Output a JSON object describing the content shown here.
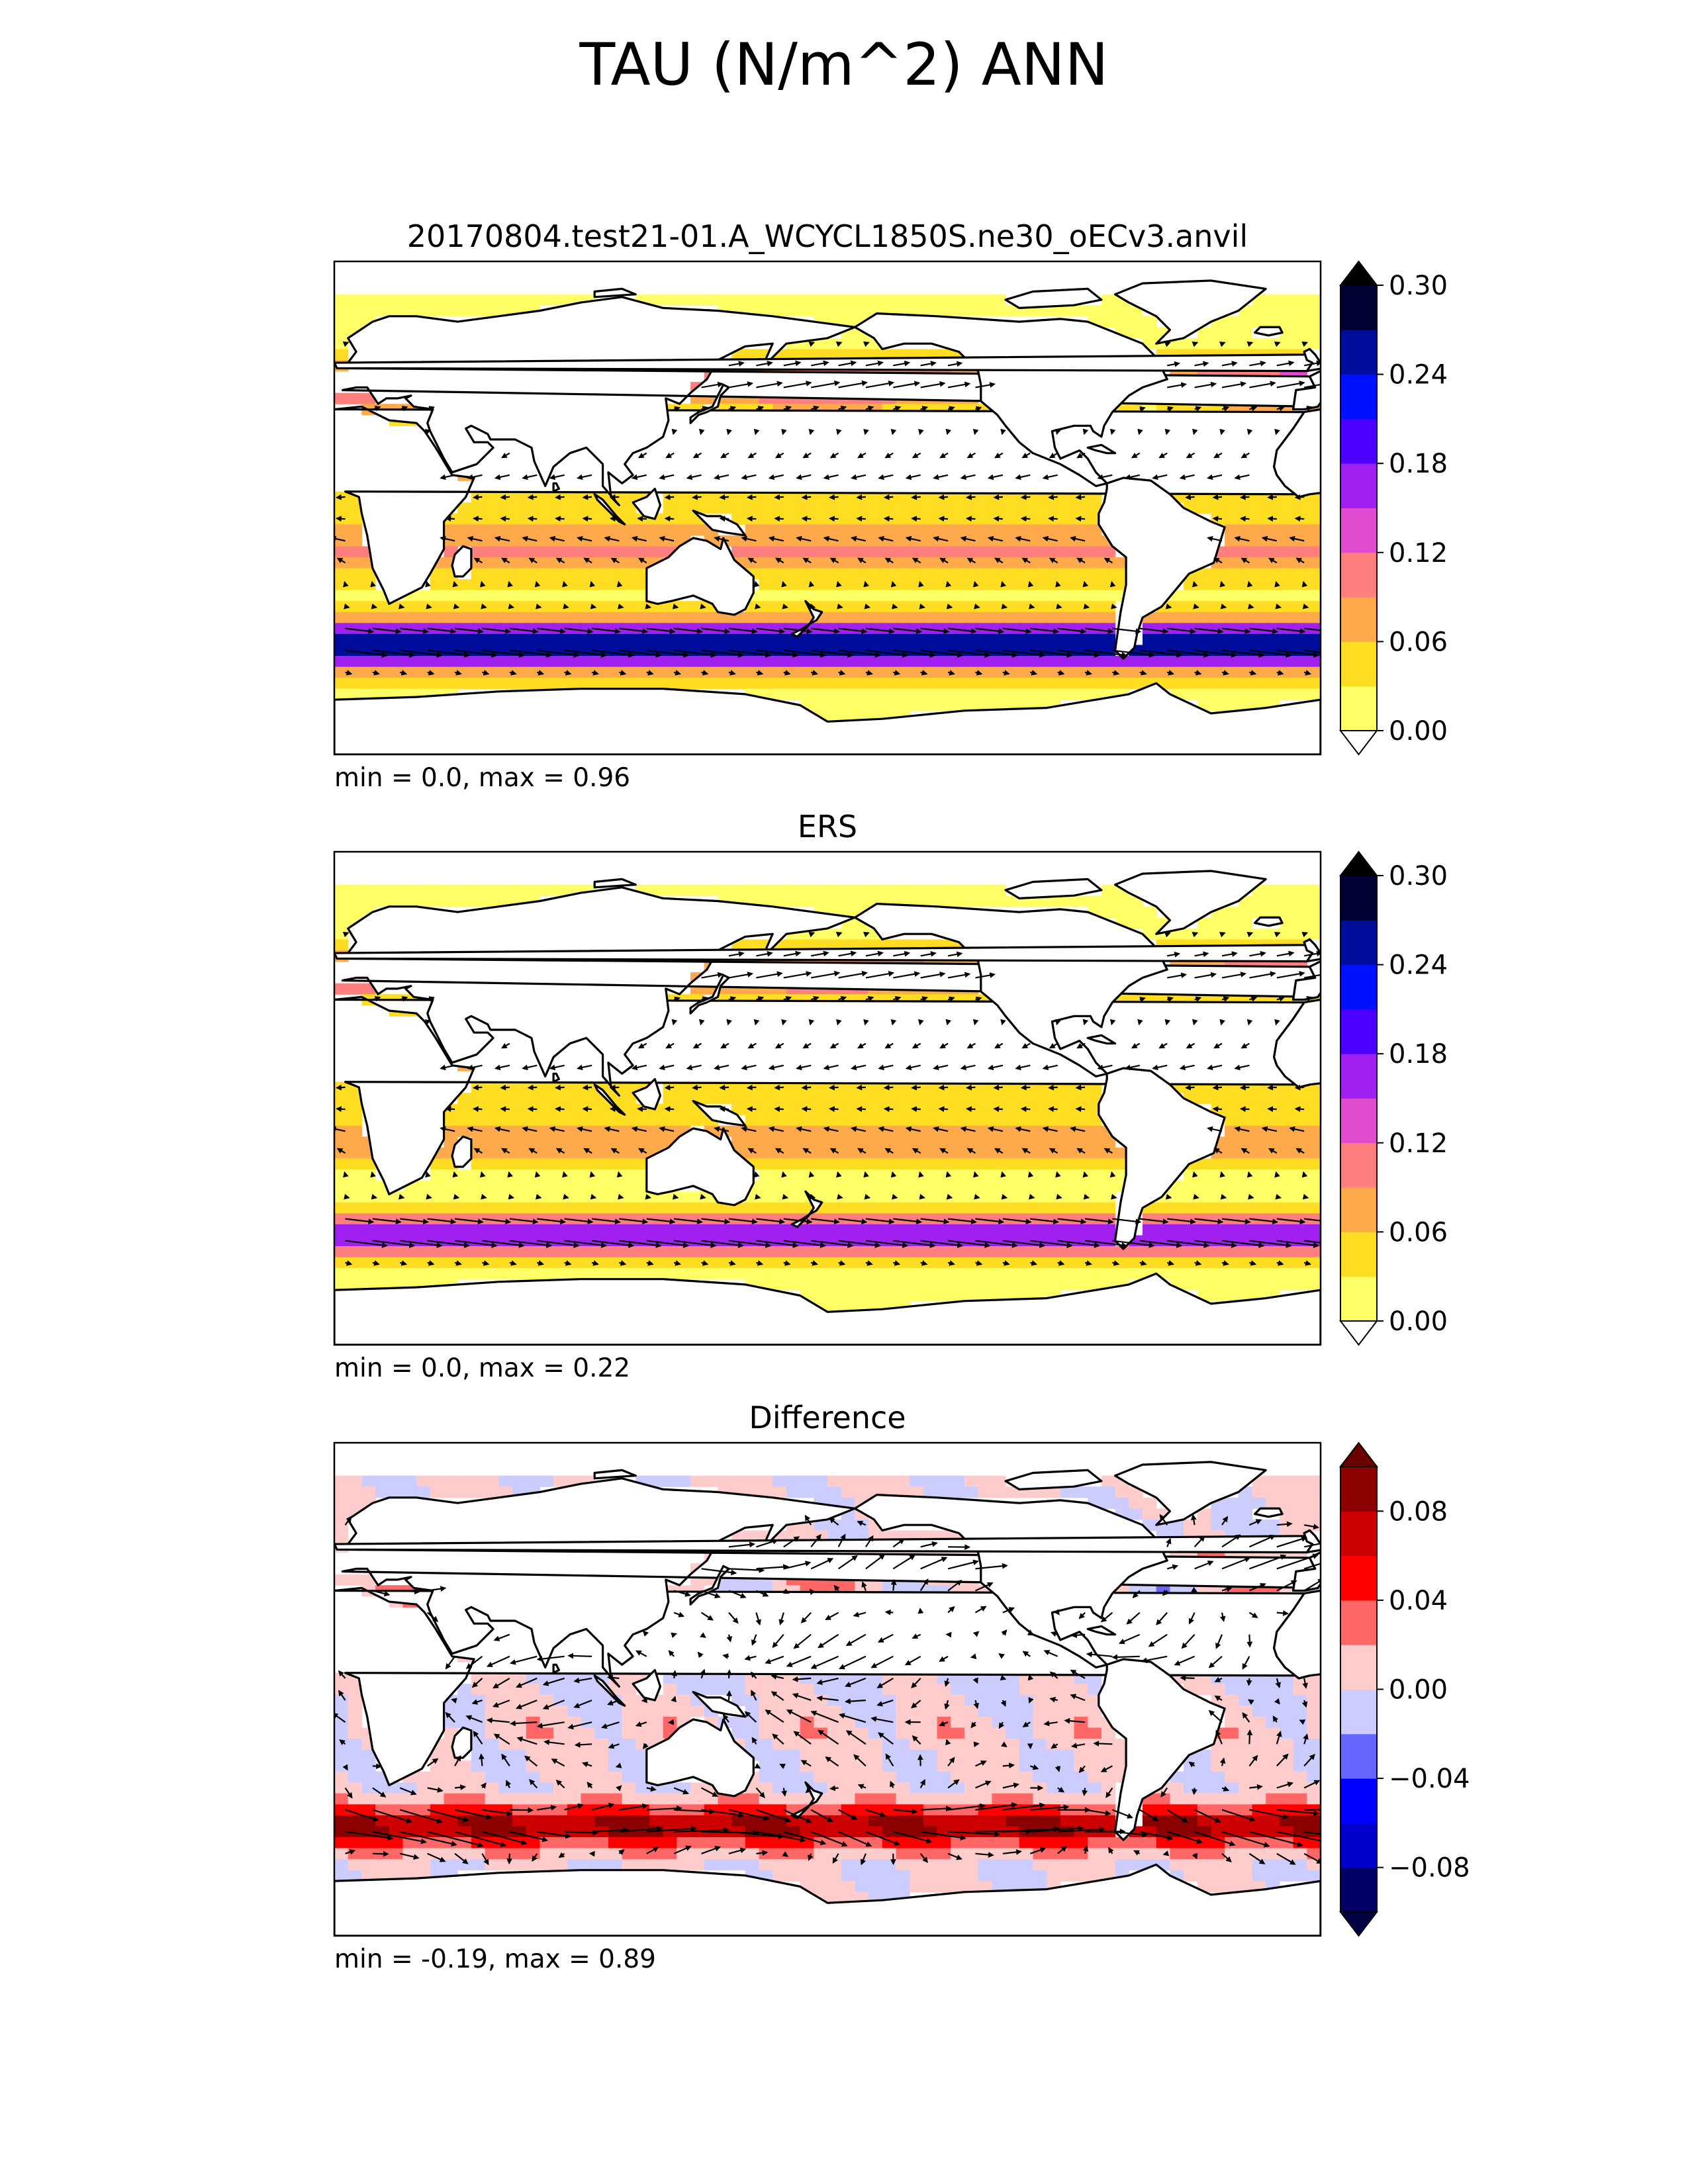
{
  "figure": {
    "title": "TAU (N/m^2) ANN"
  },
  "chart_data": [
    {
      "type": "heatmap",
      "title": "20170804.test21-01.A_WCYCL1850S.ne30_oECv3.anvil",
      "stats": "min = 0.0, max = 0.96",
      "field": "model",
      "colorbar": {
        "ticks": [
          "0.00",
          "0.06",
          "0.12",
          "0.18",
          "0.24",
          "0.30"
        ],
        "levels": [
          0.0,
          0.03,
          0.06,
          0.09,
          0.12,
          0.15,
          0.18,
          0.21,
          0.24,
          0.27,
          0.3
        ],
        "extend": "both",
        "colors": [
          "#ffff66",
          "#ffdd22",
          "#ffa94d",
          "#ff7f7f",
          "#e24bd0",
          "#a020f0",
          "#4b00ff",
          "#0011ff",
          "#000c9a",
          "#000033"
        ],
        "under_color": "#ffffff",
        "over_color": "#000000"
      }
    },
    {
      "type": "heatmap",
      "title": "ERS",
      "stats": "min = 0.0, max = 0.22",
      "field": "obs",
      "colorbar": {
        "ticks": [
          "0.00",
          "0.06",
          "0.12",
          "0.18",
          "0.24",
          "0.30"
        ],
        "levels": [
          0.0,
          0.03,
          0.06,
          0.09,
          0.12,
          0.15,
          0.18,
          0.21,
          0.24,
          0.27,
          0.3
        ],
        "extend": "both",
        "colors": [
          "#ffff66",
          "#ffdd22",
          "#ffa94d",
          "#ff7f7f",
          "#e24bd0",
          "#a020f0",
          "#4b00ff",
          "#0011ff",
          "#000c9a",
          "#000033"
        ],
        "under_color": "#ffffff",
        "over_color": "#000000"
      }
    },
    {
      "type": "heatmap",
      "title": "Difference",
      "stats": "min = -0.19, max = 0.89",
      "field": "diff",
      "colorbar": {
        "ticks": [
          "−0.08",
          "−0.04",
          "0.00",
          "0.04",
          "0.08"
        ],
        "tick_values": [
          -0.08,
          -0.04,
          0.0,
          0.04,
          0.08
        ],
        "levels": [
          -0.1,
          -0.08,
          -0.06,
          -0.04,
          -0.02,
          0.0,
          0.02,
          0.04,
          0.06,
          0.08,
          0.1
        ],
        "extend": "both",
        "colors": [
          "#000066",
          "#0000cc",
          "#0000ff",
          "#6666ff",
          "#ccccff",
          "#ffcccc",
          "#ff6666",
          "#ff0000",
          "#cc0000",
          "#8b0000"
        ],
        "under_color": "#000044",
        "over_color": "#6b0000"
      }
    }
  ]
}
